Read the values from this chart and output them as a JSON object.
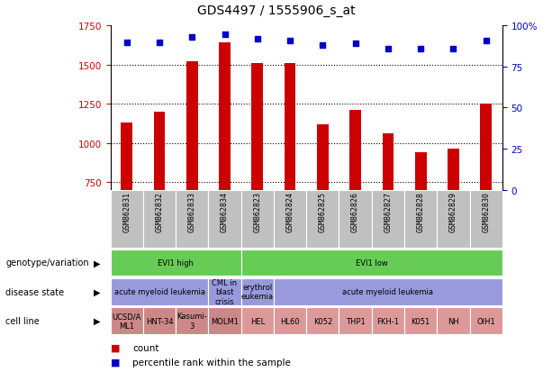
{
  "title": "GDS4497 / 1555906_s_at",
  "samples": [
    "GSM862831",
    "GSM862832",
    "GSM862833",
    "GSM862834",
    "GSM862823",
    "GSM862824",
    "GSM862825",
    "GSM862826",
    "GSM862827",
    "GSM862828",
    "GSM862829",
    "GSM862830"
  ],
  "counts": [
    1130,
    1200,
    1520,
    1640,
    1510,
    1510,
    1120,
    1210,
    1060,
    940,
    960,
    1250
  ],
  "percentile_ranks": [
    90,
    90,
    93,
    95,
    92,
    91,
    88,
    89,
    86,
    86,
    86,
    91
  ],
  "ylim_left": [
    700,
    1750
  ],
  "ylim_right": [
    0,
    100
  ],
  "yticks_left": [
    750,
    1000,
    1250,
    1500,
    1750
  ],
  "yticks_right": [
    0,
    25,
    50,
    75,
    100
  ],
  "bar_color": "#CC0000",
  "dot_color": "#0000CC",
  "bg_color": "#FFFFFF",
  "xticklabel_bg": "#C0C0C0",
  "genotype_row": {
    "label": "genotype/variation",
    "groups": [
      {
        "text": "EVI1 high",
        "start": 0,
        "end": 4,
        "color": "#66CC55"
      },
      {
        "text": "EVI1 low",
        "start": 4,
        "end": 12,
        "color": "#66CC55"
      }
    ]
  },
  "disease_row": {
    "label": "disease state",
    "groups": [
      {
        "text": "acute myeloid leukemia",
        "start": 0,
        "end": 3,
        "color": "#9999DD"
      },
      {
        "text": "CML in\nblast\ncrisis",
        "start": 3,
        "end": 4,
        "color": "#9999DD"
      },
      {
        "text": "erythrol\neukemia",
        "start": 4,
        "end": 5,
        "color": "#9999DD"
      },
      {
        "text": "acute myeloid leukemia",
        "start": 5,
        "end": 12,
        "color": "#9999DD"
      }
    ]
  },
  "cellline_row": {
    "label": "cell line",
    "groups": [
      {
        "text": "UCSD/A\nML1",
        "start": 0,
        "end": 1,
        "color": "#CC8888"
      },
      {
        "text": "HNT-34",
        "start": 1,
        "end": 2,
        "color": "#CC8888"
      },
      {
        "text": "Kasumi-\n3",
        "start": 2,
        "end": 3,
        "color": "#CC8888"
      },
      {
        "text": "MOLM1",
        "start": 3,
        "end": 4,
        "color": "#CC8888"
      },
      {
        "text": "HEL",
        "start": 4,
        "end": 5,
        "color": "#DD9999"
      },
      {
        "text": "HL60",
        "start": 5,
        "end": 6,
        "color": "#DD9999"
      },
      {
        "text": "K052",
        "start": 6,
        "end": 7,
        "color": "#DD9999"
      },
      {
        "text": "THP1",
        "start": 7,
        "end": 8,
        "color": "#DD9999"
      },
      {
        "text": "FKH-1",
        "start": 8,
        "end": 9,
        "color": "#DD9999"
      },
      {
        "text": "K051",
        "start": 9,
        "end": 10,
        "color": "#DD9999"
      },
      {
        "text": "NH",
        "start": 10,
        "end": 11,
        "color": "#DD9999"
      },
      {
        "text": "OIH1",
        "start": 11,
        "end": 12,
        "color": "#DD9999"
      }
    ]
  },
  "legend_count_color": "#CC0000",
  "legend_dot_color": "#0000CC"
}
